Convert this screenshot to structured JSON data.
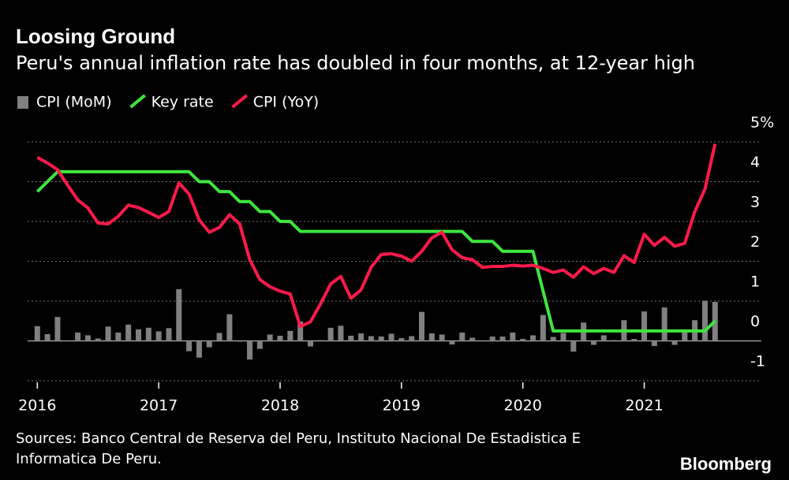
{
  "chart_data": {
    "type": "combo",
    "title": "Loosing Ground",
    "subtitle": "Peru's annual inflation rate has doubled in four months, at 12-year high",
    "source": "Sources: Banco Central de Reserva del Peru, Instituto Nacional De Estadistica E Informatica De Peru.",
    "brand": "Bloomberg",
    "x": [
      "2016-01",
      "2016-02",
      "2016-03",
      "2016-04",
      "2016-05",
      "2016-06",
      "2016-07",
      "2016-08",
      "2016-09",
      "2016-10",
      "2016-11",
      "2016-12",
      "2017-01",
      "2017-02",
      "2017-03",
      "2017-04",
      "2017-05",
      "2017-06",
      "2017-07",
      "2017-08",
      "2017-09",
      "2017-10",
      "2017-11",
      "2017-12",
      "2018-01",
      "2018-02",
      "2018-03",
      "2018-04",
      "2018-05",
      "2018-06",
      "2018-07",
      "2018-08",
      "2018-09",
      "2018-10",
      "2018-11",
      "2018-12",
      "2019-01",
      "2019-02",
      "2019-03",
      "2019-04",
      "2019-05",
      "2019-06",
      "2019-07",
      "2019-08",
      "2019-09",
      "2019-10",
      "2019-11",
      "2019-12",
      "2020-01",
      "2020-02",
      "2020-03",
      "2020-04",
      "2020-05",
      "2020-06",
      "2020-07",
      "2020-08",
      "2020-09",
      "2020-10",
      "2020-11",
      "2020-12",
      "2021-01",
      "2021-02",
      "2021-03",
      "2021-04",
      "2021-05",
      "2021-06",
      "2021-07",
      "2021-08"
    ],
    "series": [
      {
        "name": "CPI (MoM)",
        "type": "bar",
        "color": "#808080",
        "values": [
          0.37,
          0.17,
          0.6,
          0.01,
          0.21,
          0.14,
          0.06,
          0.36,
          0.21,
          0.41,
          0.29,
          0.33,
          0.24,
          0.32,
          1.3,
          -0.26,
          -0.42,
          -0.16,
          0.2,
          0.67,
          -0.02,
          -0.47,
          -0.2,
          0.16,
          0.13,
          0.25,
          0.49,
          -0.14,
          0.02,
          0.33,
          0.38,
          0.13,
          0.19,
          0.12,
          0.11,
          0.18,
          0.07,
          0.12,
          0.73,
          0.19,
          0.16,
          -0.09,
          0.21,
          0.08,
          0.01,
          0.11,
          0.11,
          0.21,
          0.05,
          0.14,
          0.65,
          0.1,
          0.2,
          -0.27,
          0.46,
          -0.1,
          0.14,
          0.02,
          0.52,
          0.05,
          0.74,
          -0.13,
          0.84,
          -0.1,
          0.27,
          0.52,
          1.01,
          0.98
        ]
      },
      {
        "name": "Key rate",
        "type": "line",
        "color": "#3ee63e",
        "values": [
          3.75,
          4.0,
          4.25,
          4.25,
          4.25,
          4.25,
          4.25,
          4.25,
          4.25,
          4.25,
          4.25,
          4.25,
          4.25,
          4.25,
          4.25,
          4.25,
          4.0,
          4.0,
          3.75,
          3.75,
          3.5,
          3.5,
          3.25,
          3.25,
          3.0,
          3.0,
          2.75,
          2.75,
          2.75,
          2.75,
          2.75,
          2.75,
          2.75,
          2.75,
          2.75,
          2.75,
          2.75,
          2.75,
          2.75,
          2.75,
          2.75,
          2.75,
          2.75,
          2.5,
          2.5,
          2.5,
          2.25,
          2.25,
          2.25,
          2.25,
          1.25,
          0.25,
          0.25,
          0.25,
          0.25,
          0.25,
          0.25,
          0.25,
          0.25,
          0.25,
          0.25,
          0.25,
          0.25,
          0.25,
          0.25,
          0.25,
          0.25,
          0.5
        ]
      },
      {
        "name": "CPI (YoY)",
        "type": "line",
        "color": "#ff1a4a",
        "values": [
          4.61,
          4.47,
          4.3,
          3.91,
          3.54,
          3.34,
          2.96,
          2.94,
          3.13,
          3.41,
          3.35,
          3.23,
          3.1,
          3.25,
          3.97,
          3.69,
          3.04,
          2.73,
          2.85,
          3.17,
          2.94,
          2.04,
          1.54,
          1.36,
          1.25,
          1.18,
          0.36,
          0.48,
          0.93,
          1.43,
          1.62,
          1.07,
          1.28,
          1.85,
          2.17,
          2.19,
          2.13,
          2.0,
          2.25,
          2.59,
          2.73,
          2.29,
          2.09,
          2.04,
          1.85,
          1.87,
          1.87,
          1.9,
          1.88,
          1.9,
          1.82,
          1.72,
          1.78,
          1.6,
          1.86,
          1.69,
          1.82,
          1.72,
          2.14,
          1.97,
          2.68,
          2.4,
          2.6,
          2.38,
          2.45,
          3.25,
          3.81,
          4.95
        ]
      }
    ],
    "xlim": [
      2015.92,
      2021.77
    ],
    "xticks": [
      2016,
      2017,
      2018,
      2019,
      2020,
      2021
    ],
    "ylim": [
      -1,
      5
    ],
    "yticks": [
      {
        "value": 5,
        "label": "5%"
      },
      4,
      3,
      2,
      1,
      0,
      -1
    ],
    "grid": true
  }
}
